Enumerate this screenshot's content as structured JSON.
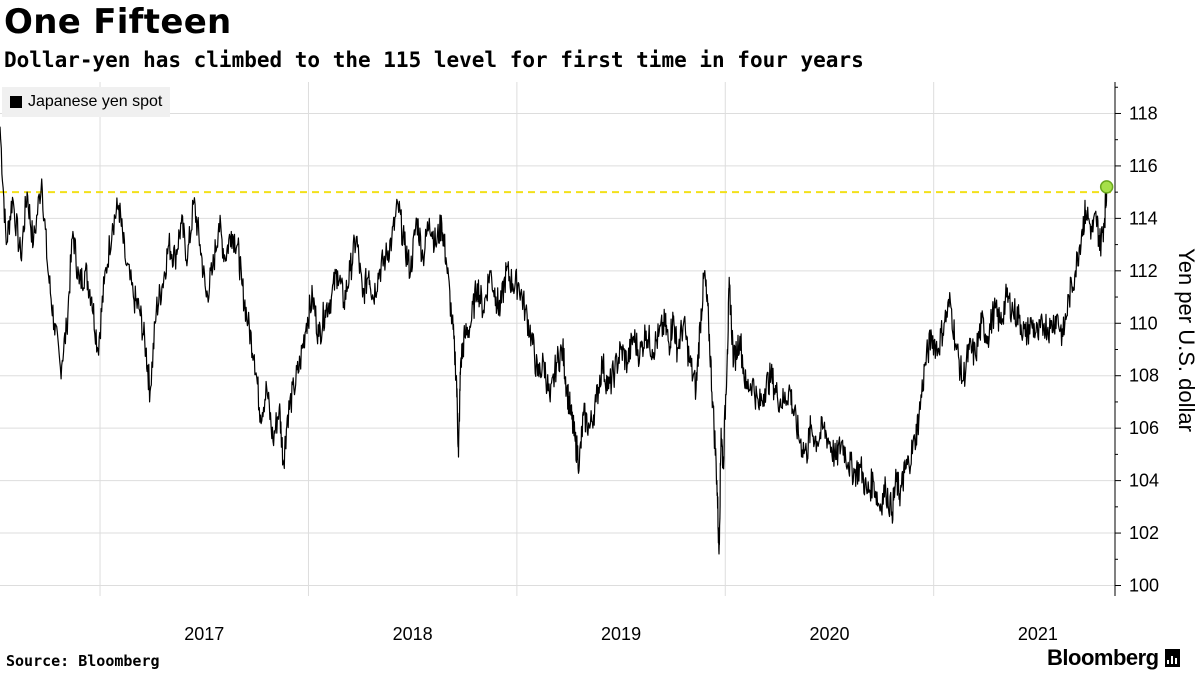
{
  "header": {
    "title": "One Fifteen",
    "subtitle": "Dollar-yen has climbed to the 115 level for first time in four years"
  },
  "footer": {
    "source": "Source: Bloomberg",
    "brand": "Bloomberg"
  },
  "colors": {
    "series": "#000000",
    "reference_line": "#f2e01a",
    "marker_fill": "#a6e04a",
    "marker_stroke": "#6aa81e",
    "grid": "#dddddd",
    "legend_bg": "#f0f0f0"
  },
  "chart_data": {
    "type": "line",
    "title": "One Fifteen",
    "subtitle": "Dollar-yen has climbed to the 115 level for first time in four years",
    "xlabel": "",
    "ylabel": "Yen per U.S. dollar",
    "legend": {
      "placement": "top-left",
      "entries": [
        "Japanese yen spot"
      ]
    },
    "grid": {
      "x": true,
      "y": true
    },
    "x_tick_labels": [
      "2017",
      "2018",
      "2019",
      "2020",
      "2021"
    ],
    "x_range": [
      2016.52,
      2021.87
    ],
    "ylim": [
      99.6,
      119.2
    ],
    "y_ticks": [
      100,
      102,
      104,
      106,
      108,
      110,
      112,
      114,
      116,
      118
    ],
    "reference_line": {
      "y": 115,
      "style": "dashed"
    },
    "marker": {
      "x": 2021.83,
      "y": 115.2
    },
    "series": [
      {
        "name": "Japanese yen spot",
        "points": [
          [
            2016.52,
            117.5
          ],
          [
            2016.55,
            113.0
          ],
          [
            2016.58,
            114.8
          ],
          [
            2016.62,
            112.5
          ],
          [
            2016.65,
            115.0
          ],
          [
            2016.68,
            113.0
          ],
          [
            2016.72,
            115.5
          ],
          [
            2016.75,
            112.0
          ],
          [
            2016.78,
            110.0
          ],
          [
            2016.81,
            108.3
          ],
          [
            2016.84,
            109.8
          ],
          [
            2016.87,
            113.5
          ],
          [
            2016.9,
            111.5
          ],
          [
            2016.93,
            112.0
          ],
          [
            2016.96,
            111.0
          ],
          [
            2016.99,
            109.0
          ],
          [
            2017.02,
            111.5
          ],
          [
            2017.06,
            113.8
          ],
          [
            2017.09,
            114.5
          ],
          [
            2017.12,
            112.5
          ],
          [
            2017.16,
            111.0
          ],
          [
            2017.19,
            110.5
          ],
          [
            2017.22,
            109.0
          ],
          [
            2017.24,
            107.4
          ],
          [
            2017.27,
            110.5
          ],
          [
            2017.3,
            111.5
          ],
          [
            2017.33,
            113.0
          ],
          [
            2017.36,
            112.5
          ],
          [
            2017.39,
            113.8
          ],
          [
            2017.42,
            112.5
          ],
          [
            2017.45,
            114.6
          ],
          [
            2017.48,
            113.0
          ],
          [
            2017.51,
            111.0
          ],
          [
            2017.54,
            112.0
          ],
          [
            2017.57,
            113.8
          ],
          [
            2017.6,
            112.5
          ],
          [
            2017.63,
            113.5
          ],
          [
            2017.66,
            113.0
          ],
          [
            2017.68,
            111.5
          ],
          [
            2017.71,
            110.0
          ],
          [
            2017.74,
            108.8
          ],
          [
            2017.77,
            106.5
          ],
          [
            2017.8,
            107.5
          ],
          [
            2017.83,
            105.5
          ],
          [
            2017.86,
            106.8
          ],
          [
            2017.88,
            104.7
          ],
          [
            2017.9,
            106.5
          ],
          [
            2017.93,
            107.5
          ],
          [
            2017.96,
            108.5
          ],
          [
            2017.99,
            110.0
          ],
          [
            2018.02,
            111.0
          ],
          [
            2018.05,
            109.5
          ],
          [
            2018.08,
            110.5
          ],
          [
            2018.11,
            111.0
          ],
          [
            2018.14,
            112.0
          ],
          [
            2018.17,
            110.8
          ],
          [
            2018.2,
            112.0
          ],
          [
            2018.23,
            113.3
          ],
          [
            2018.26,
            111.0
          ],
          [
            2018.29,
            112.0
          ],
          [
            2018.31,
            111.0
          ],
          [
            2018.34,
            112.0
          ],
          [
            2018.37,
            112.5
          ],
          [
            2018.4,
            113.2
          ],
          [
            2018.43,
            114.5
          ],
          [
            2018.46,
            113.0
          ],
          [
            2018.49,
            112.0
          ],
          [
            2018.52,
            114.0
          ],
          [
            2018.55,
            112.5
          ],
          [
            2018.58,
            114.0
          ],
          [
            2018.61,
            113.0
          ],
          [
            2018.64,
            113.8
          ],
          [
            2018.66,
            112.5
          ],
          [
            2018.69,
            110.0
          ],
          [
            2018.71,
            108.0
          ],
          [
            2018.72,
            104.9
          ],
          [
            2018.73,
            108.5
          ],
          [
            2018.75,
            109.5
          ],
          [
            2018.78,
            110.0
          ],
          [
            2018.81,
            111.5
          ],
          [
            2018.84,
            110.5
          ],
          [
            2018.87,
            112.0
          ],
          [
            2018.9,
            111.0
          ],
          [
            2018.92,
            110.5
          ],
          [
            2018.95,
            112.0
          ],
          [
            2018.98,
            111.5
          ],
          [
            2019.01,
            111.5
          ],
          [
            2019.04,
            110.5
          ],
          [
            2019.07,
            109.5
          ],
          [
            2019.1,
            108.0
          ],
          [
            2019.13,
            108.5
          ],
          [
            2019.16,
            107.0
          ],
          [
            2019.19,
            108.5
          ],
          [
            2019.22,
            109.0
          ],
          [
            2019.24,
            107.5
          ],
          [
            2019.26,
            106.5
          ],
          [
            2019.28,
            105.5
          ],
          [
            2019.3,
            104.7
          ],
          [
            2019.32,
            106.5
          ],
          [
            2019.35,
            106.0
          ],
          [
            2019.38,
            107.0
          ],
          [
            2019.41,
            108.5
          ],
          [
            2019.44,
            107.5
          ],
          [
            2019.47,
            108.2
          ],
          [
            2019.5,
            109.0
          ],
          [
            2019.53,
            108.5
          ],
          [
            2019.56,
            109.5
          ],
          [
            2019.59,
            108.8
          ],
          [
            2019.62,
            109.7
          ],
          [
            2019.65,
            109.0
          ],
          [
            2019.68,
            109.5
          ],
          [
            2019.71,
            110.0
          ],
          [
            2019.73,
            109.2
          ],
          [
            2019.75,
            110.2
          ],
          [
            2019.77,
            109.0
          ],
          [
            2019.8,
            110.0
          ],
          [
            2019.83,
            108.5
          ],
          [
            2019.86,
            107.5
          ],
          [
            2019.88,
            110.0
          ],
          [
            2019.9,
            111.9
          ],
          [
            2019.92,
            110.0
          ],
          [
            2019.94,
            107.0
          ],
          [
            2019.96,
            104.0
          ],
          [
            2019.97,
            101.2
          ],
          [
            2019.98,
            106.0
          ],
          [
            2019.99,
            104.5
          ],
          [
            2020.01,
            109.0
          ],
          [
            2020.02,
            111.5
          ],
          [
            2020.04,
            108.5
          ],
          [
            2020.07,
            109.5
          ],
          [
            2020.1,
            107.5
          ],
          [
            2020.13,
            107.8
          ],
          [
            2020.16,
            106.8
          ],
          [
            2020.19,
            107.5
          ],
          [
            2020.22,
            108.0
          ],
          [
            2020.25,
            107.2
          ],
          [
            2020.28,
            107.0
          ],
          [
            2020.31,
            107.5
          ],
          [
            2020.33,
            106.5
          ],
          [
            2020.36,
            105.5
          ],
          [
            2020.39,
            105.0
          ],
          [
            2020.41,
            106.0
          ],
          [
            2020.44,
            105.5
          ],
          [
            2020.47,
            106.0
          ],
          [
            2020.5,
            105.5
          ],
          [
            2020.53,
            104.8
          ],
          [
            2020.56,
            105.5
          ],
          [
            2020.59,
            104.7
          ],
          [
            2020.62,
            104.3
          ],
          [
            2020.65,
            104.5
          ],
          [
            2020.68,
            103.5
          ],
          [
            2020.71,
            104.0
          ],
          [
            2020.74,
            103.0
          ],
          [
            2020.77,
            103.7
          ],
          [
            2020.8,
            102.8
          ],
          [
            2020.82,
            104.0
          ],
          [
            2020.84,
            103.5
          ],
          [
            2020.86,
            104.3
          ],
          [
            2020.88,
            104.7
          ],
          [
            2020.91,
            105.5
          ],
          [
            2020.93,
            106.5
          ],
          [
            2020.96,
            108.5
          ],
          [
            2020.99,
            109.5
          ],
          [
            2021.02,
            109.0
          ],
          [
            2021.05,
            110.0
          ],
          [
            2021.08,
            110.8
          ],
          [
            2021.11,
            109.0
          ],
          [
            2021.14,
            107.8
          ],
          [
            2021.17,
            109.0
          ],
          [
            2021.2,
            108.8
          ],
          [
            2021.23,
            110.0
          ],
          [
            2021.26,
            109.5
          ],
          [
            2021.29,
            110.5
          ],
          [
            2021.32,
            110.0
          ],
          [
            2021.35,
            111.0
          ],
          [
            2021.38,
            110.5
          ],
          [
            2021.41,
            110.2
          ],
          [
            2021.44,
            109.5
          ],
          [
            2021.47,
            110.0
          ],
          [
            2021.5,
            109.5
          ],
          [
            2021.53,
            110.0
          ],
          [
            2021.56,
            109.8
          ],
          [
            2021.59,
            110.3
          ],
          [
            2021.62,
            109.5
          ],
          [
            2021.65,
            111.0
          ],
          [
            2021.68,
            112.0
          ],
          [
            2021.71,
            113.5
          ],
          [
            2021.73,
            114.3
          ],
          [
            2021.76,
            113.5
          ],
          [
            2021.78,
            114.0
          ],
          [
            2021.8,
            113.0
          ],
          [
            2021.82,
            114.0
          ],
          [
            2021.83,
            115.2
          ]
        ]
      }
    ]
  }
}
